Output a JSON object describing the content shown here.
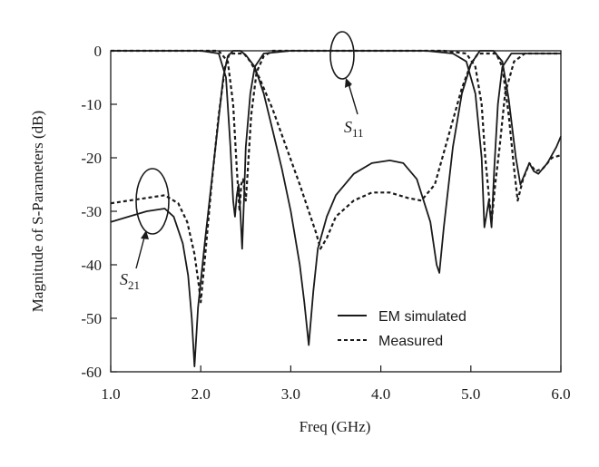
{
  "chart_data": {
    "type": "line",
    "xlabel": "Freq (GHz)",
    "ylabel": "Magnitude of S-Parameters (dB)",
    "xlim": [
      1.0,
      6.0
    ],
    "ylim": [
      -60,
      0
    ],
    "x_ticks": [
      "1.0",
      "2.0",
      "3.0",
      "4.0",
      "5.0",
      "6.0"
    ],
    "y_ticks": [
      "0",
      "-10",
      "-20",
      "-30",
      "-40",
      "-50",
      "-60"
    ],
    "grid": false,
    "legend_position": "bottom-right",
    "legend": [
      "EM simulated",
      "Measured"
    ],
    "annotations": [
      {
        "symbol": "S",
        "subscript": "11"
      },
      {
        "symbol": "S",
        "subscript": "21"
      }
    ],
    "series": [
      {
        "name": "EM simulated",
        "parameter": "S11",
        "style": "solid",
        "color": "#1a1a1a",
        "points": [
          [
            1.0,
            0
          ],
          [
            2.0,
            0
          ],
          [
            2.2,
            -0.5
          ],
          [
            2.28,
            -5
          ],
          [
            2.33,
            -18
          ],
          [
            2.36,
            -28
          ],
          [
            2.38,
            -31
          ],
          [
            2.4,
            -27
          ],
          [
            2.42,
            -25
          ],
          [
            2.44,
            -30
          ],
          [
            2.46,
            -37
          ],
          [
            2.48,
            -28
          ],
          [
            2.5,
            -18
          ],
          [
            2.55,
            -8
          ],
          [
            2.6,
            -3
          ],
          [
            2.7,
            -0.5
          ],
          [
            3.0,
            0
          ],
          [
            4.5,
            0
          ],
          [
            4.8,
            -0.5
          ],
          [
            4.95,
            -2
          ],
          [
            5.05,
            -8
          ],
          [
            5.12,
            -20
          ],
          [
            5.15,
            -33
          ],
          [
            5.18,
            -30
          ],
          [
            5.2,
            -28
          ],
          [
            5.23,
            -33
          ],
          [
            5.26,
            -22
          ],
          [
            5.3,
            -10
          ],
          [
            5.35,
            -3
          ],
          [
            5.45,
            -0.5
          ],
          [
            6.0,
            -0.5
          ]
        ]
      },
      {
        "name": "EM simulated",
        "parameter": "S21",
        "style": "solid",
        "color": "#1a1a1a",
        "points": [
          [
            1.0,
            -32
          ],
          [
            1.2,
            -31
          ],
          [
            1.4,
            -30
          ],
          [
            1.6,
            -29.5
          ],
          [
            1.7,
            -31
          ],
          [
            1.8,
            -36
          ],
          [
            1.86,
            -42
          ],
          [
            1.9,
            -50
          ],
          [
            1.93,
            -59
          ],
          [
            1.97,
            -48
          ],
          [
            2.05,
            -35
          ],
          [
            2.15,
            -20
          ],
          [
            2.25,
            -5
          ],
          [
            2.3,
            -1
          ],
          [
            2.36,
            0
          ],
          [
            2.44,
            0
          ],
          [
            2.5,
            -0.8
          ],
          [
            2.6,
            -3
          ],
          [
            2.7,
            -8
          ],
          [
            2.8,
            -15
          ],
          [
            2.9,
            -22
          ],
          [
            3.0,
            -30
          ],
          [
            3.1,
            -40
          ],
          [
            3.15,
            -47
          ],
          [
            3.2,
            -55
          ],
          [
            3.25,
            -45
          ],
          [
            3.3,
            -37
          ],
          [
            3.4,
            -31
          ],
          [
            3.5,
            -27
          ],
          [
            3.7,
            -23
          ],
          [
            3.9,
            -21
          ],
          [
            4.1,
            -20.5
          ],
          [
            4.25,
            -21
          ],
          [
            4.4,
            -24
          ],
          [
            4.55,
            -32
          ],
          [
            4.62,
            -40
          ],
          [
            4.65,
            -41.5
          ],
          [
            4.7,
            -33
          ],
          [
            4.8,
            -18
          ],
          [
            4.9,
            -8
          ],
          [
            5.0,
            -2.5
          ],
          [
            5.1,
            0
          ],
          [
            5.25,
            0
          ],
          [
            5.35,
            -2
          ],
          [
            5.42,
            -9
          ],
          [
            5.5,
            -20
          ],
          [
            5.55,
            -25
          ],
          [
            5.6,
            -23
          ],
          [
            5.65,
            -21
          ],
          [
            5.7,
            -22.5
          ],
          [
            5.75,
            -23
          ],
          [
            5.85,
            -21
          ],
          [
            5.95,
            -18
          ],
          [
            6.0,
            -16
          ]
        ]
      },
      {
        "name": "Measured",
        "parameter": "S11",
        "style": "dashed",
        "color": "#1a1a1a",
        "points": [
          [
            1.0,
            0
          ],
          [
            2.2,
            0
          ],
          [
            2.3,
            -2
          ],
          [
            2.36,
            -10
          ],
          [
            2.4,
            -22
          ],
          [
            2.43,
            -30
          ],
          [
            2.45,
            -25
          ],
          [
            2.47,
            -24
          ],
          [
            2.5,
            -28
          ],
          [
            2.52,
            -23
          ],
          [
            2.56,
            -12
          ],
          [
            2.62,
            -4
          ],
          [
            2.7,
            -1
          ],
          [
            2.8,
            0
          ],
          [
            4.7,
            0
          ],
          [
            4.95,
            -0.5
          ],
          [
            5.05,
            -3
          ],
          [
            5.12,
            -10
          ],
          [
            5.16,
            -20
          ],
          [
            5.2,
            -27
          ],
          [
            5.23,
            -32
          ],
          [
            5.27,
            -25
          ],
          [
            5.32,
            -18
          ],
          [
            5.38,
            -8
          ],
          [
            5.48,
            -2
          ],
          [
            5.6,
            -0.5
          ],
          [
            6.0,
            -0.5
          ]
        ]
      },
      {
        "name": "Measured",
        "parameter": "S21",
        "style": "dashed",
        "color": "#1a1a1a",
        "points": [
          [
            1.0,
            -28.5
          ],
          [
            1.2,
            -28
          ],
          [
            1.4,
            -27.5
          ],
          [
            1.6,
            -27
          ],
          [
            1.75,
            -28.5
          ],
          [
            1.85,
            -32
          ],
          [
            1.93,
            -38
          ],
          [
            1.98,
            -44
          ],
          [
            2.0,
            -47
          ],
          [
            2.05,
            -38
          ],
          [
            2.12,
            -25
          ],
          [
            2.2,
            -12
          ],
          [
            2.27,
            -3
          ],
          [
            2.32,
            -0.5
          ],
          [
            2.48,
            -0.5
          ],
          [
            2.55,
            -2
          ],
          [
            2.65,
            -5
          ],
          [
            2.8,
            -11
          ],
          [
            2.95,
            -18
          ],
          [
            3.1,
            -25
          ],
          [
            3.2,
            -30
          ],
          [
            3.28,
            -34
          ],
          [
            3.33,
            -37
          ],
          [
            3.4,
            -35
          ],
          [
            3.5,
            -31
          ],
          [
            3.7,
            -28
          ],
          [
            3.9,
            -26.5
          ],
          [
            4.1,
            -26.5
          ],
          [
            4.3,
            -27.5
          ],
          [
            4.45,
            -28
          ],
          [
            4.6,
            -25
          ],
          [
            4.75,
            -16
          ],
          [
            4.9,
            -7
          ],
          [
            5.0,
            -2.5
          ],
          [
            5.08,
            -0.5
          ],
          [
            5.28,
            -0.5
          ],
          [
            5.35,
            -3
          ],
          [
            5.42,
            -12
          ],
          [
            5.48,
            -22
          ],
          [
            5.52,
            -28
          ],
          [
            5.58,
            -24
          ],
          [
            5.65,
            -21
          ],
          [
            5.72,
            -22.5
          ],
          [
            5.8,
            -22
          ],
          [
            5.9,
            -20
          ],
          [
            6.0,
            -19.5
          ]
        ]
      }
    ]
  }
}
